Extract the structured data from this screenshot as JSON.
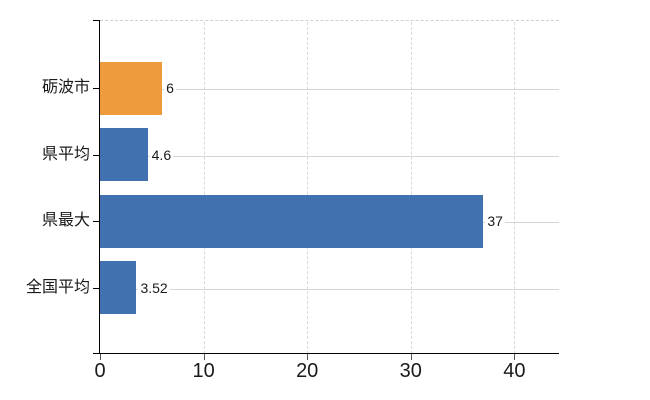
{
  "chart_data": {
    "type": "bar",
    "orientation": "horizontal",
    "title": "",
    "categories": [
      "砺波市",
      "県平均",
      "県最大",
      "全国平均"
    ],
    "values": [
      6,
      4.6,
      37,
      3.52
    ],
    "value_labels": [
      "6",
      "4.6",
      "37",
      "3.52"
    ],
    "bar_colors": [
      "#ee9b3d",
      "#4271af",
      "#4271af",
      "#4271af"
    ],
    "series": [
      {
        "name": "",
        "values": [
          6,
          4.6,
          37,
          3.52
        ]
      }
    ],
    "x_ticks": [
      0,
      10,
      20,
      30,
      40
    ],
    "x_tick_labels": [
      "0",
      "10",
      "20",
      "30",
      "40"
    ],
    "xlabel": "",
    "ylabel": "",
    "xlim": [
      0,
      44.3
    ],
    "grid": "on",
    "legend": "none",
    "colors": {
      "highlight_bar": "#ee9b3d",
      "default_bar": "#4271af",
      "axis": "#000000",
      "h_gridline": "#d2d8cf",
      "v_gridline": "#d9d9d9",
      "plot_top_border": "#d0d0d0",
      "text": "#1a1a1a",
      "background": "#ffffff"
    }
  }
}
